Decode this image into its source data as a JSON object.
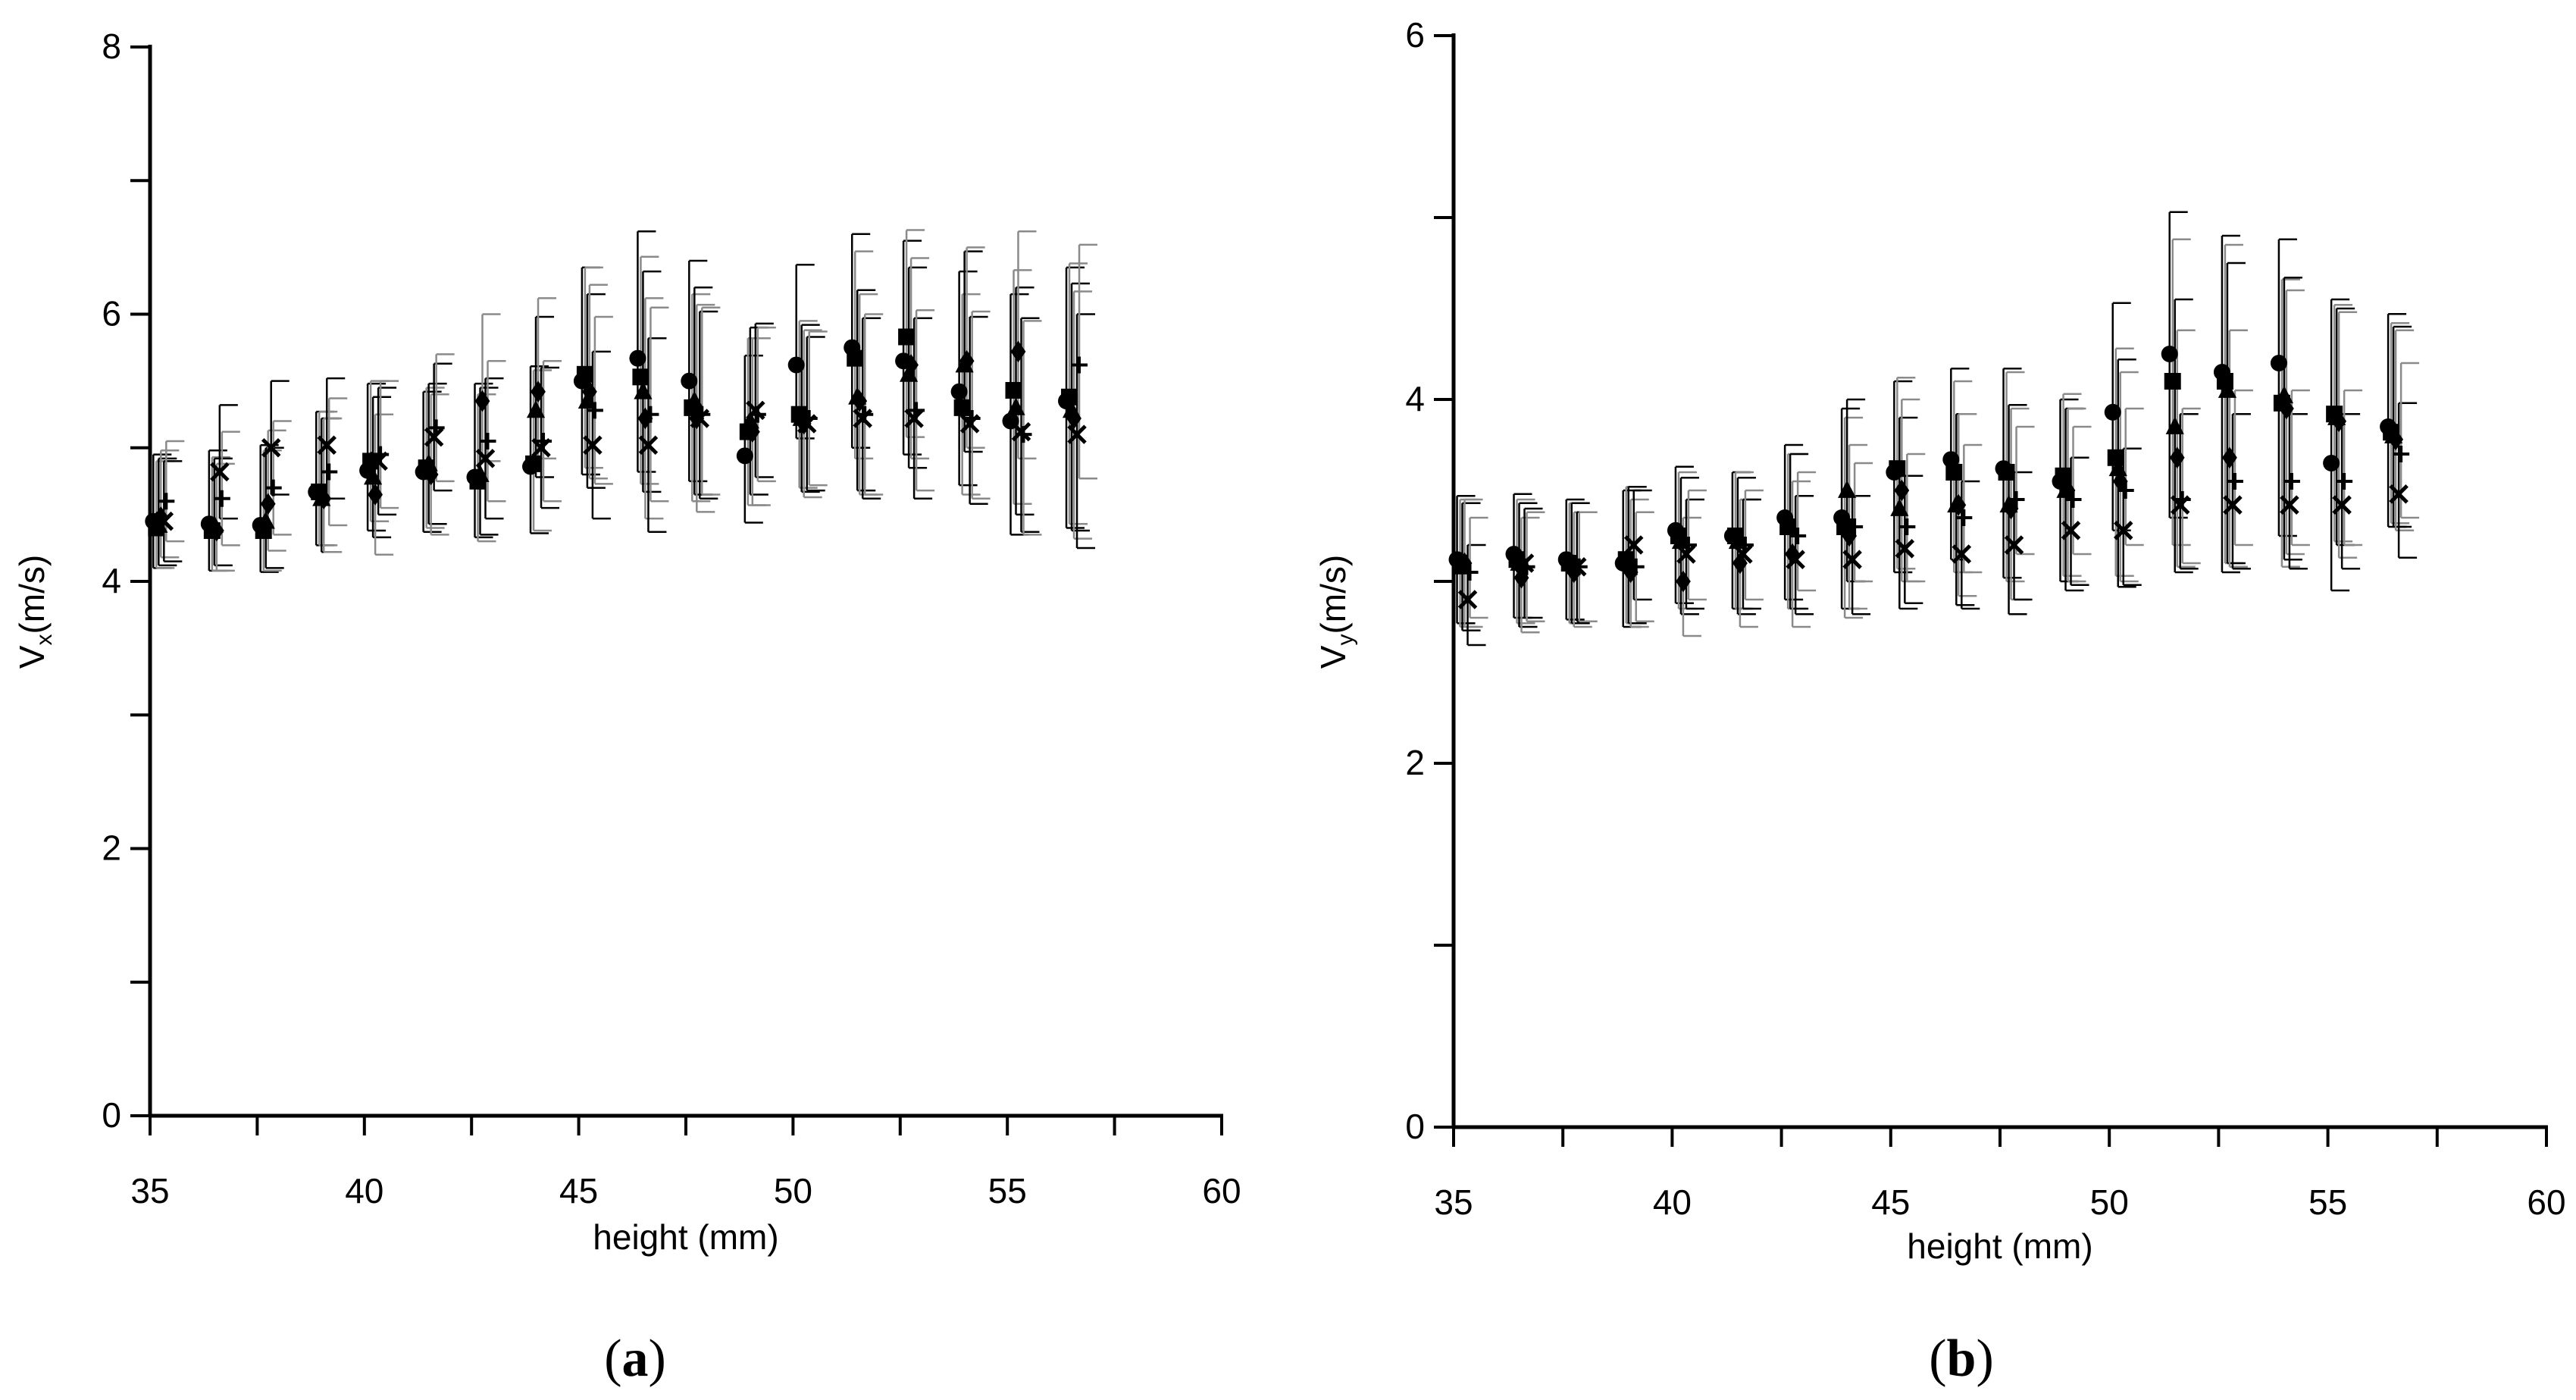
{
  "chart_data": [
    {
      "type": "scatter",
      "panel_label": "a",
      "title": "",
      "xlabel": "height (mm)",
      "ylabel": "V",
      "ylabel_sub": "x",
      "ylabel_unit": "(m/s)",
      "xlim": [
        35,
        60
      ],
      "ylim": [
        0,
        8
      ],
      "x_ticks": [
        35,
        40,
        45,
        50,
        55,
        60
      ],
      "x_tick_labels": [
        "35",
        "40",
        "45",
        "50",
        "55",
        "60"
      ],
      "y_ticks": [
        0,
        2,
        4,
        6,
        8
      ],
      "y_tick_labels": [
        "0",
        "2",
        "4",
        "6",
        "8"
      ],
      "x": [
        35.2,
        36.5,
        37.7,
        39.0,
        40.2,
        41.5,
        42.7,
        44.0,
        45.2,
        46.5,
        47.7,
        49.0,
        50.2,
        51.5,
        52.7,
        54.0,
        55.2,
        56.5
      ],
      "series": [
        {
          "name": "circle",
          "marker": "circle",
          "values": [
            4.45,
            4.43,
            4.42,
            4.67,
            4.83,
            4.82,
            4.78,
            4.86,
            5.5,
            5.67,
            5.5,
            4.94,
            5.62,
            5.75,
            5.65,
            5.42,
            5.2,
            5.35
          ],
          "err_hi": [
            0.5,
            0.55,
            0.6,
            0.6,
            0.65,
            0.6,
            0.7,
            0.75,
            0.85,
            0.95,
            0.9,
            0.75,
            0.75,
            0.85,
            0.9,
            0.9,
            0.95,
            1.0
          ],
          "err_lo": [
            0.35,
            0.35,
            0.35,
            0.4,
            0.45,
            0.45,
            0.45,
            0.5,
            0.7,
            0.85,
            0.75,
            0.5,
            0.55,
            0.75,
            0.7,
            0.7,
            0.85,
            0.95
          ]
        },
        {
          "name": "square",
          "marker": "square",
          "values": [
            4.4,
            4.38,
            4.38,
            4.67,
            4.9,
            4.85,
            4.75,
            4.88,
            5.55,
            5.53,
            5.3,
            5.12,
            5.25,
            5.67,
            5.83,
            5.3,
            5.43,
            5.38
          ],
          "err_hi": [
            0.5,
            0.55,
            0.6,
            0.6,
            0.6,
            0.6,
            0.65,
            0.7,
            0.8,
            0.9,
            0.85,
            0.7,
            0.7,
            0.8,
            0.8,
            0.85,
            0.9,
            1.0
          ],
          "err_lo": [
            0.3,
            0.3,
            0.3,
            0.4,
            0.45,
            0.45,
            0.45,
            0.5,
            0.7,
            0.8,
            0.7,
            0.55,
            0.55,
            0.75,
            0.75,
            0.65,
            0.85,
            0.95
          ]
        },
        {
          "name": "triangle",
          "marker": "triangle",
          "values": [
            4.42,
            4.42,
            4.45,
            4.62,
            4.78,
            4.88,
            4.8,
            5.28,
            5.35,
            5.42,
            5.35,
            5.2,
            5.22,
            5.38,
            5.55,
            5.62,
            5.3,
            5.28
          ],
          "err_hi": [
            0.5,
            0.5,
            0.55,
            0.6,
            0.6,
            0.6,
            0.65,
            0.7,
            0.8,
            0.9,
            0.85,
            0.7,
            0.7,
            0.8,
            0.8,
            0.85,
            0.9,
            0.95
          ],
          "err_lo": [
            0.3,
            0.3,
            0.35,
            0.4,
            0.45,
            0.45,
            0.45,
            0.5,
            0.65,
            0.75,
            0.7,
            0.55,
            0.55,
            0.7,
            0.7,
            0.65,
            0.8,
            0.9
          ]
        },
        {
          "name": "diamond",
          "marker": "diamond",
          "values": [
            4.48,
            4.38,
            4.58,
            4.62,
            4.65,
            4.8,
            5.35,
            5.42,
            5.42,
            5.22,
            5.22,
            5.12,
            5.18,
            5.35,
            5.62,
            5.65,
            5.72,
            5.22
          ],
          "err_hi": [
            0.5,
            0.5,
            0.55,
            0.6,
            0.6,
            0.6,
            0.65,
            0.7,
            0.8,
            0.9,
            0.85,
            0.7,
            0.7,
            0.8,
            0.8,
            0.85,
            0.9,
            0.95
          ],
          "err_lo": [
            0.3,
            0.3,
            0.35,
            0.4,
            0.45,
            0.45,
            0.45,
            0.5,
            0.65,
            0.75,
            0.7,
            0.55,
            0.55,
            0.7,
            0.7,
            0.65,
            0.8,
            0.9
          ]
        },
        {
          "name": "cross",
          "marker": "x",
          "values": [
            4.45,
            4.82,
            5.0,
            5.02,
            4.9,
            5.08,
            4.92,
            5.0,
            5.02,
            5.02,
            5.22,
            5.28,
            5.18,
            5.22,
            5.22,
            5.18,
            5.12,
            5.1
          ],
          "err_hi": [
            0.45,
            0.5,
            0.5,
            0.5,
            0.55,
            0.55,
            0.6,
            0.6,
            0.7,
            0.8,
            0.8,
            0.65,
            0.65,
            0.75,
            0.75,
            0.8,
            0.85,
            0.9
          ],
          "err_lo": [
            0.3,
            0.35,
            0.35,
            0.4,
            0.4,
            0.4,
            0.45,
            0.45,
            0.55,
            0.65,
            0.6,
            0.5,
            0.5,
            0.6,
            0.6,
            0.6,
            0.75,
            0.85
          ]
        },
        {
          "name": "plus",
          "marker": "plus",
          "values": [
            4.6,
            4.62,
            4.7,
            4.82,
            4.95,
            5.15,
            5.05,
            5.05,
            5.28,
            5.25,
            5.25,
            5.25,
            5.22,
            5.25,
            5.28,
            5.22,
            5.1,
            5.62
          ],
          "err_hi": [
            0.45,
            0.5,
            0.5,
            0.55,
            0.55,
            0.55,
            0.6,
            0.6,
            0.7,
            0.8,
            0.8,
            0.65,
            0.65,
            0.75,
            0.75,
            0.8,
            0.85,
            0.9
          ],
          "err_lo": [
            0.3,
            0.35,
            0.35,
            0.4,
            0.4,
            0.4,
            0.45,
            0.45,
            0.55,
            0.65,
            0.6,
            0.5,
            0.5,
            0.6,
            0.6,
            0.6,
            0.75,
            0.85
          ]
        }
      ]
    },
    {
      "type": "scatter",
      "panel_label": "b",
      "title": "",
      "xlabel": "height (mm)",
      "ylabel": "V",
      "ylabel_sub": "y",
      "ylabel_unit": "(m/s)",
      "xlim": [
        35,
        60
      ],
      "ylim": [
        0,
        6
      ],
      "x_ticks": [
        35,
        40,
        45,
        50,
        55,
        60
      ],
      "x_tick_labels": [
        "35",
        "40",
        "45",
        "50",
        "55",
        "60"
      ],
      "y_ticks": [
        0,
        2,
        4,
        6
      ],
      "y_tick_labels": [
        "0",
        "2",
        "4",
        "6"
      ],
      "x": [
        35.2,
        36.5,
        37.7,
        39.0,
        40.2,
        41.5,
        42.7,
        44.0,
        45.2,
        46.5,
        47.7,
        49.0,
        50.2,
        51.5,
        52.7,
        54.0,
        55.2,
        56.5
      ],
      "series": [
        {
          "name": "circle",
          "marker": "circle",
          "values": [
            3.12,
            3.15,
            3.12,
            3.1,
            3.28,
            3.25,
            3.35,
            3.35,
            3.6,
            3.67,
            3.62,
            3.55,
            3.93,
            4.25,
            4.15,
            4.2,
            3.65,
            3.85
          ],
          "err_hi": [
            0.35,
            0.33,
            0.33,
            0.4,
            0.35,
            0.35,
            0.4,
            0.6,
            0.5,
            0.5,
            0.55,
            0.45,
            0.6,
            0.78,
            0.75,
            0.68,
            0.9,
            0.62
          ],
          "err_lo": [
            0.35,
            0.35,
            0.33,
            0.35,
            0.4,
            0.4,
            0.45,
            0.5,
            0.55,
            0.55,
            0.6,
            0.55,
            0.65,
            0.9,
            1.1,
            0.95,
            0.7,
            0.55
          ]
        },
        {
          "name": "square",
          "marker": "square",
          "values": [
            3.1,
            3.12,
            3.1,
            3.12,
            3.25,
            3.25,
            3.3,
            3.3,
            3.62,
            3.6,
            3.6,
            3.58,
            3.68,
            4.1,
            4.1,
            3.98,
            3.92,
            3.82
          ],
          "err_hi": [
            0.35,
            0.33,
            0.33,
            0.4,
            0.35,
            0.35,
            0.4,
            0.6,
            0.5,
            0.5,
            0.55,
            0.45,
            0.6,
            0.78,
            0.75,
            0.68,
            0.6,
            0.6
          ],
          "err_lo": [
            0.35,
            0.35,
            0.33,
            0.35,
            0.4,
            0.4,
            0.45,
            0.5,
            0.55,
            0.55,
            0.6,
            0.55,
            0.65,
            0.9,
            1.0,
            0.9,
            0.7,
            0.5
          ]
        },
        {
          "name": "triangle",
          "marker": "triangle",
          "values": [
            3.08,
            3.1,
            3.1,
            3.12,
            3.22,
            3.22,
            3.3,
            3.5,
            3.4,
            3.42,
            3.42,
            3.5,
            3.62,
            3.85,
            4.05,
            4.02,
            3.9,
            3.8
          ],
          "err_hi": [
            0.35,
            0.33,
            0.33,
            0.4,
            0.35,
            0.35,
            0.4,
            0.5,
            0.5,
            0.5,
            0.55,
            0.45,
            0.6,
            0.7,
            0.7,
            0.65,
            0.6,
            0.6
          ],
          "err_lo": [
            0.35,
            0.35,
            0.33,
            0.35,
            0.4,
            0.4,
            0.45,
            0.5,
            0.55,
            0.55,
            0.6,
            0.55,
            0.65,
            0.8,
            0.95,
            0.9,
            0.7,
            0.5
          ]
        },
        {
          "name": "diamond",
          "marker": "diamond",
          "values": [
            3.1,
            3.02,
            3.05,
            3.05,
            3.0,
            3.1,
            3.15,
            3.25,
            3.5,
            3.42,
            3.4,
            3.5,
            3.55,
            3.68,
            3.68,
            3.95,
            3.88,
            3.78
          ],
          "err_hi": [
            0.35,
            0.33,
            0.33,
            0.4,
            0.35,
            0.35,
            0.4,
            0.5,
            0.5,
            0.5,
            0.55,
            0.45,
            0.6,
            0.7,
            0.7,
            0.65,
            0.6,
            0.6
          ],
          "err_lo": [
            0.35,
            0.3,
            0.3,
            0.3,
            0.3,
            0.35,
            0.4,
            0.4,
            0.5,
            0.5,
            0.5,
            0.5,
            0.55,
            0.6,
            0.6,
            0.8,
            0.75,
            0.5
          ]
        },
        {
          "name": "cross",
          "marker": "x",
          "values": [
            2.9,
            3.1,
            3.08,
            3.2,
            3.15,
            3.15,
            3.12,
            3.12,
            3.18,
            3.15,
            3.2,
            3.28,
            3.28,
            3.42,
            3.42,
            3.42,
            3.42,
            3.48
          ],
          "err_hi": [
            0.3,
            0.3,
            0.3,
            0.3,
            0.3,
            0.3,
            0.35,
            0.35,
            0.4,
            0.4,
            0.4,
            0.4,
            0.45,
            0.5,
            0.5,
            0.5,
            0.5,
            0.5
          ],
          "err_lo": [
            0.25,
            0.3,
            0.3,
            0.3,
            0.3,
            0.3,
            0.3,
            0.3,
            0.3,
            0.3,
            0.3,
            0.3,
            0.3,
            0.35,
            0.35,
            0.35,
            0.35,
            0.35
          ]
        },
        {
          "name": "plus",
          "marker": "plus",
          "values": [
            3.05,
            3.08,
            3.08,
            3.08,
            3.2,
            3.2,
            3.25,
            3.3,
            3.3,
            3.35,
            3.45,
            3.45,
            3.5,
            3.45,
            3.55,
            3.55,
            3.55,
            3.7
          ],
          "err_hi": [
            0.3,
            0.3,
            0.3,
            0.3,
            0.3,
            0.3,
            0.35,
            0.35,
            0.4,
            0.4,
            0.4,
            0.4,
            0.45,
            0.5,
            0.5,
            0.5,
            0.5,
            0.5
          ],
          "err_lo": [
            0.25,
            0.3,
            0.3,
            0.3,
            0.3,
            0.3,
            0.3,
            0.3,
            0.3,
            0.3,
            0.3,
            0.3,
            0.3,
            0.35,
            0.35,
            0.35,
            0.35,
            0.35
          ]
        }
      ]
    }
  ],
  "colors": {
    "axis": "#000000",
    "marker": "#000000",
    "error_bar_dark": "#000000",
    "error_bar_light": "#8a8a8a"
  }
}
